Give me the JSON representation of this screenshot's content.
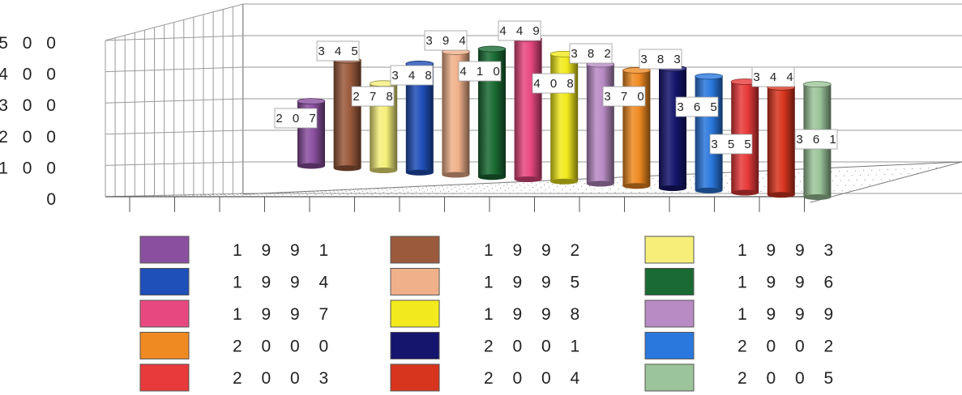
{
  "chart_data": {
    "type": "bar",
    "title": "",
    "xlabel": "",
    "ylabel": "",
    "ylim": [
      0,
      500
    ],
    "y_ticks": [
      "0",
      "1 0 0",
      "2 0 0",
      "3 0 0",
      "4 0 0",
      "5 0 0"
    ],
    "grid": true,
    "legend_placement": "bottom",
    "categories": [
      "1991",
      "1992",
      "1993",
      "1994",
      "1995",
      "1996",
      "1997",
      "1998",
      "1999",
      "2000",
      "2001",
      "2002",
      "2003",
      "2004",
      "2005"
    ],
    "values": [
      207,
      345,
      278,
      348,
      394,
      410,
      449,
      408,
      382,
      370,
      383,
      365,
      355,
      344,
      361
    ],
    "data_labels": [
      "2 0 7",
      "3 4 5",
      "2 7 8",
      "3 4 8",
      "3 9 4",
      "4 1 0",
      "4 4 9",
      "4 0 8",
      "3 8 2",
      "3 7 0",
      "3 8 3",
      "3 6 5",
      "3 5 5",
      "3 4 4",
      "3 6 1"
    ],
    "legend_labels": [
      "1 9 9 1",
      "1 9 9 2",
      "1 9 9 3",
      "1 9 9 4",
      "1 9 9 5",
      "1 9 9 6",
      "1 9 9 7",
      "1 9 9 8",
      "1 9 9 9",
      "2 0 0 0",
      "2 0 0 1",
      "2 0 0 2",
      "2 0 0 3",
      "2 0 0 4",
      "2 0 0 5"
    ],
    "colors": [
      "#8a4f9e",
      "#9b5a3c",
      "#f5ef7a",
      "#1f4fb8",
      "#f0b08a",
      "#1a6b33",
      "#e84880",
      "#f2ea1c",
      "#b88bc4",
      "#ef8a22",
      "#15156e",
      "#2a78de",
      "#e83a3a",
      "#d8351e",
      "#9cc49a"
    ]
  }
}
